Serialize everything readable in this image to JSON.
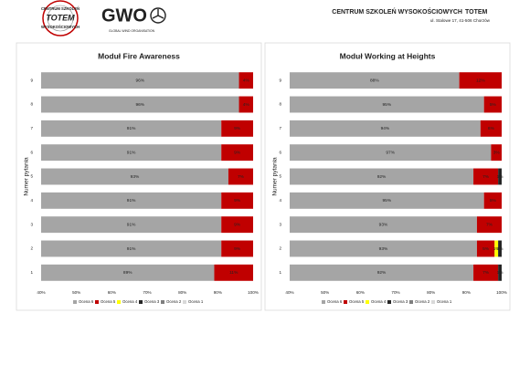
{
  "header": {
    "logo_top": "CENTRUM SZKOLEŃ",
    "logo_middle": "TOTEM",
    "logo_bottom": "WYSOKOŚCIOWYCH",
    "gwo": "GWO",
    "gwo_sub": "GLOBAL WIND ORGANISATION",
    "company": "CENTRUM SZKOLEŃ WYSOKOŚCIOWYCH",
    "company_brand": "TOTEM",
    "address": "ul. Stalowe 17, 41-506 Chorzów"
  },
  "chart_data": [
    {
      "type": "stacked-bar-horizontal",
      "title": "Moduł Fire Awareness",
      "y_label": "Numer pytania",
      "categories": [
        "1",
        "2",
        "3",
        "4",
        "5",
        "6",
        "7",
        "8",
        "9"
      ],
      "xlim": [
        40,
        100
      ],
      "xticks": [
        {
          "value": 40,
          "label": "40%"
        },
        {
          "value": 50,
          "label": "50%"
        },
        {
          "value": 60,
          "label": "60%"
        },
        {
          "value": 70,
          "label": "70%"
        },
        {
          "value": 80,
          "label": "80%"
        },
        {
          "value": 90,
          "label": "90%"
        },
        {
          "value": 100,
          "label": "100%"
        }
      ],
      "grid": false,
      "series": [
        {
          "name": "Ocena 6",
          "color": "#a5a5a5",
          "values": [
            89,
            91,
            91,
            91,
            93,
            91,
            91,
            96,
            96
          ],
          "value_labels": [
            "89%",
            "91%",
            "91%",
            "91%",
            "93%",
            "91%",
            "91%",
            "96%",
            "96%"
          ]
        },
        {
          "name": "Ocena 5",
          "color": "#c00000",
          "values": [
            11,
            9,
            9,
            9,
            7,
            9,
            9,
            4,
            4
          ],
          "value_labels": [
            "11%",
            "9%",
            "9%",
            "9%",
            "7%",
            "9%",
            "9%",
            "4%",
            "4%"
          ]
        },
        {
          "name": "Ocena 4",
          "color": "#ffff00",
          "values": [
            null,
            null,
            null,
            null,
            null,
            null,
            null,
            null,
            null
          ],
          "value_labels": [
            null,
            null,
            null,
            null,
            null,
            null,
            null,
            null,
            null
          ]
        },
        {
          "name": "Ocena 3",
          "color": "#262626",
          "values": [
            null,
            null,
            null,
            null,
            null,
            null,
            null,
            null,
            null
          ],
          "value_labels": [
            null,
            null,
            null,
            null,
            null,
            null,
            null,
            null,
            null
          ]
        },
        {
          "name": "Ocena 2",
          "color": "#7f7f7f",
          "values": [
            null,
            null,
            null,
            null,
            null,
            null,
            null,
            null,
            null
          ],
          "value_labels": [
            null,
            null,
            null,
            null,
            null,
            null,
            null,
            null,
            null
          ]
        },
        {
          "name": "Ocena 1",
          "color": "#d9d9d9",
          "values": [
            null,
            null,
            null,
            null,
            null,
            null,
            null,
            null,
            null
          ],
          "value_labels": [
            null,
            null,
            null,
            null,
            null,
            null,
            null,
            null,
            null
          ]
        }
      ]
    },
    {
      "type": "stacked-bar-horizontal",
      "title": "Moduł Working at Heights",
      "y_label": "Numer pytania",
      "categories": [
        "1",
        "2",
        "3",
        "4",
        "5",
        "6",
        "7",
        "8",
        "9"
      ],
      "xlim": [
        40,
        100
      ],
      "xticks": [
        {
          "value": 40,
          "label": "40%"
        },
        {
          "value": 50,
          "label": "50%"
        },
        {
          "value": 60,
          "label": "60%"
        },
        {
          "value": 70,
          "label": "70%"
        },
        {
          "value": 80,
          "label": "80%"
        },
        {
          "value": 90,
          "label": "90%"
        },
        {
          "value": 100,
          "label": "100%"
        }
      ],
      "grid": false,
      "series": [
        {
          "name": "Ocena 6",
          "color": "#a5a5a5",
          "values": [
            92,
            93,
            93,
            95,
            92,
            97,
            94,
            95,
            88
          ],
          "value_labels": [
            "92%",
            "93%",
            "93%",
            "95%",
            "92%",
            "97%",
            "94%",
            "95%",
            "88%"
          ]
        },
        {
          "name": "Ocena 5",
          "color": "#c00000",
          "values": [
            7,
            5,
            7,
            5,
            7,
            3,
            6,
            5,
            12
          ],
          "value_labels": [
            "7%",
            "5%",
            "7%",
            "5%",
            "7%",
            "3%",
            "6%",
            "5%",
            "12%"
          ]
        },
        {
          "name": "Ocena 4",
          "color": "#ffff00",
          "values": [
            null,
            1,
            null,
            null,
            null,
            null,
            null,
            null,
            null
          ],
          "value_labels": [
            null,
            "1%",
            null,
            null,
            null,
            null,
            null,
            null,
            null
          ]
        },
        {
          "name": "Ocena 3",
          "color": "#262626",
          "values": [
            1,
            1,
            null,
            null,
            1,
            null,
            null,
            null,
            null
          ],
          "value_labels": [
            "1%",
            "1%",
            null,
            null,
            "1%",
            null,
            null,
            null,
            null
          ]
        },
        {
          "name": "Ocena 2",
          "color": "#7f7f7f",
          "values": [
            null,
            null,
            null,
            null,
            null,
            null,
            null,
            null,
            null
          ],
          "value_labels": [
            null,
            null,
            null,
            null,
            null,
            null,
            null,
            null,
            null
          ]
        },
        {
          "name": "Ocena 1",
          "color": "#d9d9d9",
          "values": [
            null,
            null,
            null,
            null,
            null,
            null,
            null,
            null,
            null
          ],
          "value_labels": [
            null,
            null,
            null,
            null,
            null,
            null,
            null,
            null,
            null
          ]
        }
      ]
    }
  ]
}
